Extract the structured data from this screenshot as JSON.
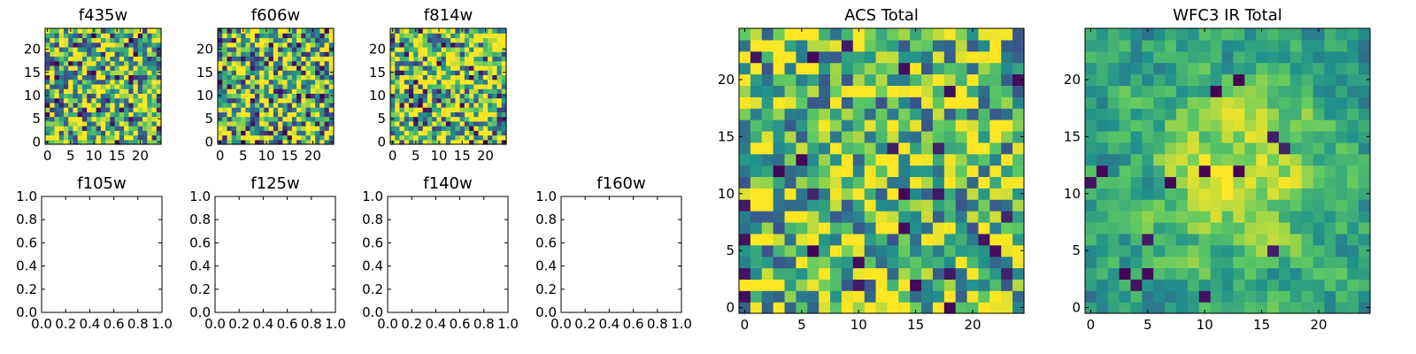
{
  "colormap": {
    "name": "viridis",
    "stops": [
      "#440154",
      "#3b528b",
      "#21918c",
      "#5ec962",
      "#fde725"
    ]
  },
  "chart_data": [
    {
      "type": "heatmap",
      "title": "f435w",
      "grid_size": 25,
      "x_ticks": [
        "0",
        "5",
        "10",
        "15",
        "20"
      ],
      "y_ticks": [
        "0",
        "5",
        "10",
        "15",
        "20"
      ],
      "noise": {
        "seed": 11,
        "base": 0.72,
        "spread": 0.55,
        "smooth": 0,
        "dark_rate": 0.07
      }
    },
    {
      "type": "heatmap",
      "title": "f606w",
      "grid_size": 25,
      "x_ticks": [
        "0",
        "5",
        "10",
        "15",
        "20"
      ],
      "y_ticks": [
        "0",
        "5",
        "10",
        "15",
        "20"
      ],
      "noise": {
        "seed": 23,
        "base": 0.7,
        "spread": 0.55,
        "smooth": 0,
        "dark_rate": 0.07
      }
    },
    {
      "type": "heatmap",
      "title": "f814w",
      "grid_size": 25,
      "x_ticks": [
        "0",
        "5",
        "10",
        "15",
        "20"
      ],
      "y_ticks": [
        "0",
        "5",
        "10",
        "15",
        "20"
      ],
      "noise": {
        "seed": 37,
        "base": 0.74,
        "spread": 0.55,
        "smooth": 0,
        "dark_rate": 0.06
      }
    },
    {
      "type": "empty",
      "title": "f105w",
      "x_ticks": [
        "0.0",
        "0.2",
        "0.4",
        "0.6",
        "0.8",
        "1.0"
      ],
      "y_ticks": [
        "0.0",
        "0.2",
        "0.4",
        "0.6",
        "0.8",
        "1.0"
      ]
    },
    {
      "type": "empty",
      "title": "f125w",
      "x_ticks": [
        "0.0",
        "0.2",
        "0.4",
        "0.6",
        "0.8",
        "1.0"
      ],
      "y_ticks": [
        "0.0",
        "0.2",
        "0.4",
        "0.6",
        "0.8",
        "1.0"
      ]
    },
    {
      "type": "empty",
      "title": "f140w",
      "x_ticks": [
        "0.0",
        "0.2",
        "0.4",
        "0.6",
        "0.8",
        "1.0"
      ],
      "y_ticks": [
        "0.0",
        "0.2",
        "0.4",
        "0.6",
        "0.8",
        "1.0"
      ]
    },
    {
      "type": "empty",
      "title": "f160w",
      "x_ticks": [
        "0.0",
        "0.2",
        "0.4",
        "0.6",
        "0.8",
        "1.0"
      ],
      "y_ticks": [
        "0.0",
        "0.2",
        "0.4",
        "0.6",
        "0.8",
        "1.0"
      ]
    },
    {
      "type": "heatmap",
      "title": "ACS Total",
      "grid_size": 25,
      "x_ticks": [
        "0",
        "5",
        "10",
        "15",
        "20"
      ],
      "y_ticks": [
        "0",
        "5",
        "10",
        "15",
        "20"
      ],
      "noise": {
        "seed": 53,
        "base": 0.7,
        "spread": 0.45,
        "smooth": 0,
        "dark_rate": 0.035
      }
    },
    {
      "type": "heatmap",
      "title": "WFC3 IR Total",
      "grid_size": 25,
      "x_ticks": [
        "0",
        "5",
        "10",
        "15",
        "20"
      ],
      "y_ticks": [
        "0",
        "5",
        "10",
        "15",
        "20"
      ],
      "noise": {
        "seed": 71,
        "base": 0.56,
        "spread": 0.3,
        "smooth": 1,
        "dark_rate": 0.02,
        "center_boost": 0.32
      }
    }
  ]
}
